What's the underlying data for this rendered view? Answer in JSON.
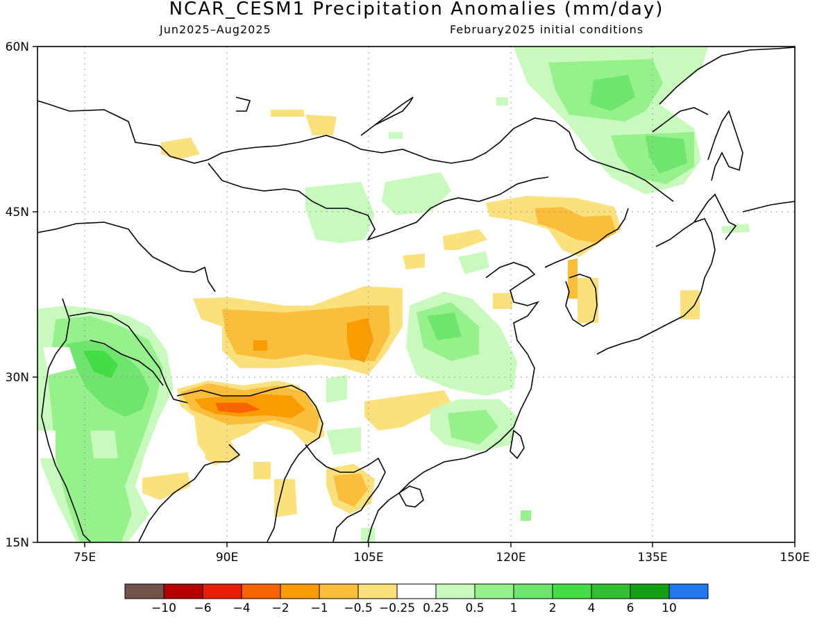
{
  "title": "NCAR_CESM1 Precipitation Anomalies (mm/day)",
  "subtitle_left": "Jun2025–Aug2025",
  "subtitle_right": "February2025 initial conditions",
  "lat_labels": [
    "60N",
    "45N",
    "30N",
    "15N"
  ],
  "lon_labels": [
    "75E",
    "90E",
    "105E",
    "120E",
    "135E",
    "150E"
  ],
  "colorbar": {
    "colors": [
      "#73544b",
      "#b40000",
      "#e61e0a",
      "#fa6400",
      "#fa9b00",
      "#fabe3c",
      "#fae17d",
      "#ffffff",
      "#c8fabe",
      "#96f08c",
      "#6ee66e",
      "#46dc46",
      "#32be32",
      "#14a014",
      "#2378f0"
    ],
    "labels": [
      "−10",
      "−6",
      "−4",
      "−2",
      "−1",
      "−0.5",
      "−0.25",
      "0.25",
      "0.5",
      "1",
      "2",
      "4",
      "6",
      "10"
    ]
  }
}
